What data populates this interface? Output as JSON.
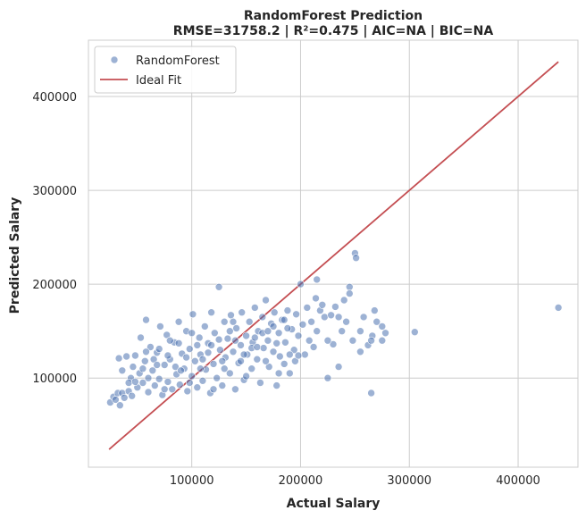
{
  "chart_data": {
    "type": "scatter",
    "title": "RandomForest Prediction",
    "subtitle": "RMSE=31758.2 | R²=0.475 | AIC=NA | BIC=NA",
    "xlabel": "Actual Salary",
    "ylabel": "Predicted Salary",
    "xlim": [
      5000,
      455000
    ],
    "ylim": [
      5000,
      460000
    ],
    "xticks": [
      100000,
      200000,
      300000,
      400000
    ],
    "yticks": [
      100000,
      200000,
      300000,
      400000
    ],
    "grid": true,
    "legend_position": "top-left",
    "colors": {
      "points": "#4c72b0",
      "ideal_line": "#c44e52",
      "grid": "#cccccc",
      "spine": "#cccccc"
    },
    "series": [
      {
        "name": "RandomForest",
        "kind": "scatter",
        "points": [
          [
            25000,
            74000
          ],
          [
            28000,
            80000
          ],
          [
            30000,
            77000
          ],
          [
            32000,
            84000
          ],
          [
            33000,
            121000
          ],
          [
            34000,
            71000
          ],
          [
            36000,
            84000
          ],
          [
            38000,
            79000
          ],
          [
            40000,
            123000
          ],
          [
            42000,
            86000
          ],
          [
            44000,
            100000
          ],
          [
            45000,
            81000
          ],
          [
            46000,
            112000
          ],
          [
            48000,
            124000
          ],
          [
            50000,
            90000
          ],
          [
            52000,
            105000
          ],
          [
            53000,
            143000
          ],
          [
            55000,
            95000
          ],
          [
            57000,
            118000
          ],
          [
            58000,
            162000
          ],
          [
            60000,
            85000
          ],
          [
            62000,
            133000
          ],
          [
            64000,
            108000
          ],
          [
            66000,
            92000
          ],
          [
            68000,
            127000
          ],
          [
            70000,
            99000
          ],
          [
            71000,
            155000
          ],
          [
            73000,
            82000
          ],
          [
            75000,
            114000
          ],
          [
            77000,
            146000
          ],
          [
            78000,
            96000
          ],
          [
            80000,
            120000
          ],
          [
            82000,
            88000
          ],
          [
            84000,
            138000
          ],
          [
            86000,
            104000
          ],
          [
            88000,
            160000
          ],
          [
            89000,
            93000
          ],
          [
            91000,
            126000
          ],
          [
            93000,
            110000
          ],
          [
            95000,
            150000
          ],
          [
            96000,
            86000
          ],
          [
            98000,
            131000
          ],
          [
            100000,
            102000
          ],
          [
            101000,
            168000
          ],
          [
            103000,
            118000
          ],
          [
            105000,
            90000
          ],
          [
            107000,
            143000
          ],
          [
            108000,
            125000
          ],
          [
            110000,
            97000
          ],
          [
            112000,
            155000
          ],
          [
            113000,
            109000
          ],
          [
            115000,
            137000
          ],
          [
            117000,
            84000
          ],
          [
            118000,
            170000
          ],
          [
            120000,
            115000
          ],
          [
            121000,
            148000
          ],
          [
            123000,
            100000
          ],
          [
            125000,
            197000
          ],
          [
            126000,
            130000
          ],
          [
            128000,
            92000
          ],
          [
            130000,
            160000
          ],
          [
            131000,
            122000
          ],
          [
            133000,
            142000
          ],
          [
            135000,
            105000
          ],
          [
            136000,
            167000
          ],
          [
            138000,
            128000
          ],
          [
            140000,
            88000
          ],
          [
            141000,
            153000
          ],
          [
            143000,
            116000
          ],
          [
            145000,
            135000
          ],
          [
            146000,
            170000
          ],
          [
            148000,
            98000
          ],
          [
            150000,
            145000
          ],
          [
            151000,
            125000
          ],
          [
            153000,
            160000
          ],
          [
            155000,
            110000
          ],
          [
            156000,
            138000
          ],
          [
            158000,
            175000
          ],
          [
            160000,
            120000
          ],
          [
            161000,
            150000
          ],
          [
            163000,
            95000
          ],
          [
            165000,
            165000
          ],
          [
            166000,
            132000
          ],
          [
            168000,
            183000
          ],
          [
            170000,
            140000
          ],
          [
            171000,
            112000
          ],
          [
            173000,
            158000
          ],
          [
            175000,
            128000
          ],
          [
            176000,
            170000
          ],
          [
            178000,
            92000
          ],
          [
            180000,
            148000
          ],
          [
            181000,
            123000
          ],
          [
            183000,
            162000
          ],
          [
            185000,
            115000
          ],
          [
            186000,
            138000
          ],
          [
            188000,
            172000
          ],
          [
            190000,
            105000
          ],
          [
            192000,
            152000
          ],
          [
            194000,
            130000
          ],
          [
            196000,
            168000
          ],
          [
            198000,
            145000
          ],
          [
            200000,
            200000
          ],
          [
            202000,
            157000
          ],
          [
            204000,
            125000
          ],
          [
            206000,
            175000
          ],
          [
            208000,
            140000
          ],
          [
            210000,
            160000
          ],
          [
            212000,
            133000
          ],
          [
            214000,
            185000
          ],
          [
            215000,
            150000
          ],
          [
            218000,
            172000
          ],
          [
            220000,
            178000
          ],
          [
            222000,
            165000
          ],
          [
            225000,
            100000
          ],
          [
            228000,
            167000
          ],
          [
            230000,
            136000
          ],
          [
            232000,
            176000
          ],
          [
            235000,
            112000
          ],
          [
            238000,
            150000
          ],
          [
            240000,
            183000
          ],
          [
            242000,
            160000
          ],
          [
            245000,
            197000
          ],
          [
            248000,
            140000
          ],
          [
            250000,
            233000
          ],
          [
            251000,
            228000
          ],
          [
            255000,
            150000
          ],
          [
            258000,
            165000
          ],
          [
            262000,
            135000
          ],
          [
            265000,
            84000
          ],
          [
            266000,
            145000
          ],
          [
            268000,
            172000
          ],
          [
            270000,
            160000
          ],
          [
            275000,
            155000
          ],
          [
            278000,
            148000
          ],
          [
            305000,
            149000
          ],
          [
            437000,
            175000
          ],
          [
            42000,
            95000
          ],
          [
            55000,
            110000
          ],
          [
            65000,
            120000
          ],
          [
            75000,
            88000
          ],
          [
            85000,
            112000
          ],
          [
            95000,
            122000
          ],
          [
            105000,
            135000
          ],
          [
            115000,
            127000
          ],
          [
            125000,
            141000
          ],
          [
            135000,
            150000
          ],
          [
            145000,
            118000
          ],
          [
            155000,
            132000
          ],
          [
            165000,
            148000
          ],
          [
            175000,
            155000
          ],
          [
            185000,
            162000
          ],
          [
            195000,
            118000
          ],
          [
            60000,
            100000
          ],
          [
            70000,
            131000
          ],
          [
            80000,
            140000
          ],
          [
            90000,
            108000
          ],
          [
            100000,
            148000
          ],
          [
            110000,
            120000
          ],
          [
            120000,
            88000
          ],
          [
            130000,
            110000
          ],
          [
            140000,
            140000
          ],
          [
            150000,
            102000
          ],
          [
            160000,
            133000
          ],
          [
            170000,
            150000
          ],
          [
            180000,
            105000
          ],
          [
            190000,
            125000
          ],
          [
            36000,
            108000
          ],
          [
            48000,
            96000
          ],
          [
            58000,
            128000
          ],
          [
            68000,
            114000
          ],
          [
            78000,
            124000
          ],
          [
            88000,
            137000
          ],
          [
            98000,
            95000
          ],
          [
            108000,
            110000
          ],
          [
            118000,
            135000
          ],
          [
            128000,
            118000
          ],
          [
            138000,
            160000
          ],
          [
            148000,
            125000
          ],
          [
            158000,
            143000
          ],
          [
            168000,
            118000
          ],
          [
            178000,
            137000
          ],
          [
            188000,
            153000
          ],
          [
            198000,
            124000
          ],
          [
            215000,
            205000
          ],
          [
            225000,
            140000
          ],
          [
            235000,
            165000
          ],
          [
            245000,
            190000
          ],
          [
            255000,
            128000
          ],
          [
            265000,
            140000
          ],
          [
            275000,
            140000
          ]
        ]
      },
      {
        "name": "Ideal Fit",
        "kind": "line",
        "points": [
          [
            24000,
            24000
          ],
          [
            437000,
            437000
          ]
        ]
      }
    ]
  }
}
